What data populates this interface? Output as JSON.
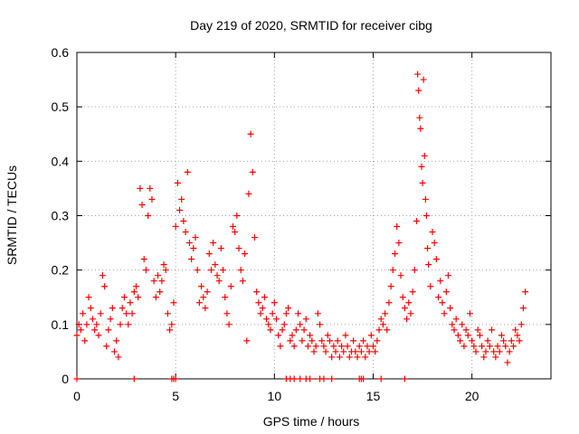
{
  "chart_data": {
    "type": "scatter",
    "title": "Day 219 of 2020, SRMTID for receiver cibg",
    "xlabel": "GPS time / hours",
    "ylabel": "SRMTID / TECUs",
    "xlim": [
      0,
      24
    ],
    "ylim": [
      0,
      0.6
    ],
    "xticks": [
      0,
      5,
      10,
      15,
      20
    ],
    "xtick_labels": [
      "0",
      "5",
      "10",
      "15",
      "20"
    ],
    "yticks": [
      0,
      0.1,
      0.2,
      0.3,
      0.4,
      0.5,
      0.6
    ],
    "ytick_labels": [
      "0",
      "0.1",
      "0.2",
      "0.3",
      "0.4",
      "0.5",
      "0.6"
    ],
    "grid": true,
    "marker": "+",
    "series": [
      {
        "name": "SRMTID",
        "color": "#ff0000",
        "points": [
          [
            0.0,
            0.08
          ],
          [
            0.1,
            0.1
          ],
          [
            0.2,
            0.09
          ],
          [
            0.3,
            0.12
          ],
          [
            0.4,
            0.07
          ],
          [
            0.5,
            0.1
          ],
          [
            0.6,
            0.15
          ],
          [
            0.7,
            0.13
          ],
          [
            0.8,
            0.11
          ],
          [
            0.9,
            0.09
          ],
          [
            1.0,
            0.1
          ],
          [
            1.1,
            0.08
          ],
          [
            1.2,
            0.12
          ],
          [
            1.3,
            0.19
          ],
          [
            1.4,
            0.17
          ],
          [
            1.5,
            0.06
          ],
          [
            1.6,
            0.09
          ],
          [
            1.7,
            0.11
          ],
          [
            1.8,
            0.13
          ],
          [
            1.9,
            0.05
          ],
          [
            2.0,
            0.07
          ],
          [
            2.1,
            0.04
          ],
          [
            2.2,
            0.1
          ],
          [
            2.3,
            0.13
          ],
          [
            2.4,
            0.15
          ],
          [
            2.5,
            0.12
          ],
          [
            2.6,
            0.1
          ],
          [
            2.7,
            0.14
          ],
          [
            2.8,
            0.12
          ],
          [
            2.9,
            0.16
          ],
          [
            3.0,
            0.17
          ],
          [
            3.1,
            0.15
          ],
          [
            3.2,
            0.35
          ],
          [
            3.3,
            0.32
          ],
          [
            3.4,
            0.22
          ],
          [
            3.5,
            0.2
          ],
          [
            3.6,
            0.3
          ],
          [
            3.7,
            0.35
          ],
          [
            3.8,
            0.33
          ],
          [
            3.9,
            0.18
          ],
          [
            4.0,
            0.15
          ],
          [
            4.1,
            0.19
          ],
          [
            4.2,
            0.16
          ],
          [
            4.3,
            0.18
          ],
          [
            4.4,
            0.21
          ],
          [
            4.5,
            0.2
          ],
          [
            4.6,
            0.12
          ],
          [
            4.7,
            0.09
          ],
          [
            4.8,
            0.1
          ],
          [
            4.9,
            0.14
          ],
          [
            5.0,
            0.28
          ],
          [
            5.1,
            0.36
          ],
          [
            5.2,
            0.31
          ],
          [
            5.3,
            0.33
          ],
          [
            5.4,
            0.29
          ],
          [
            5.5,
            0.27
          ],
          [
            5.6,
            0.38
          ],
          [
            5.7,
            0.25
          ],
          [
            5.8,
            0.22
          ],
          [
            5.9,
            0.24
          ],
          [
            6.0,
            0.26
          ],
          [
            6.1,
            0.2
          ],
          [
            6.2,
            0.14
          ],
          [
            6.3,
            0.17
          ],
          [
            6.4,
            0.15
          ],
          [
            6.5,
            0.13
          ],
          [
            6.6,
            0.16
          ],
          [
            6.7,
            0.23
          ],
          [
            6.8,
            0.2
          ],
          [
            6.9,
            0.25
          ],
          [
            7.0,
            0.21
          ],
          [
            7.1,
            0.19
          ],
          [
            7.2,
            0.18
          ],
          [
            7.3,
            0.24
          ],
          [
            7.4,
            0.2
          ],
          [
            7.5,
            0.15
          ],
          [
            7.6,
            0.12
          ],
          [
            7.7,
            0.1
          ],
          [
            7.8,
            0.17
          ],
          [
            7.9,
            0.28
          ],
          [
            8.0,
            0.27
          ],
          [
            8.1,
            0.3
          ],
          [
            8.2,
            0.24
          ],
          [
            8.3,
            0.2
          ],
          [
            8.4,
            0.18
          ],
          [
            8.5,
            0.23
          ],
          [
            8.6,
            0.07
          ],
          [
            8.7,
            0.34
          ],
          [
            8.8,
            0.45
          ],
          [
            8.9,
            0.38
          ],
          [
            9.0,
            0.26
          ],
          [
            9.1,
            0.16
          ],
          [
            9.2,
            0.14
          ],
          [
            9.3,
            0.12
          ],
          [
            9.4,
            0.13
          ],
          [
            9.5,
            0.15
          ],
          [
            9.6,
            0.11
          ],
          [
            9.7,
            0.1
          ],
          [
            9.8,
            0.09
          ],
          [
            9.9,
            0.12
          ],
          [
            10.0,
            0.14
          ],
          [
            10.1,
            0.11
          ],
          [
            10.2,
            0.08
          ],
          [
            10.3,
            0.06
          ],
          [
            10.4,
            0.09
          ],
          [
            10.5,
            0.1
          ],
          [
            10.6,
            0.12
          ],
          [
            10.7,
            0.13
          ],
          [
            10.8,
            0.07
          ],
          [
            10.9,
            0.08
          ],
          [
            11.0,
            0.06
          ],
          [
            11.1,
            0.09
          ],
          [
            11.2,
            0.12
          ],
          [
            11.3,
            0.1
          ],
          [
            11.4,
            0.07
          ],
          [
            11.5,
            0.09
          ],
          [
            11.6,
            0.11
          ],
          [
            11.7,
            0.06
          ],
          [
            11.8,
            0.08
          ],
          [
            11.9,
            0.07
          ],
          [
            12.0,
            0.05
          ],
          [
            12.1,
            0.06
          ],
          [
            12.2,
            0.12
          ],
          [
            12.3,
            0.1
          ],
          [
            12.4,
            0.07
          ],
          [
            12.5,
            0.06
          ],
          [
            12.6,
            0.05
          ],
          [
            12.7,
            0.08
          ],
          [
            12.8,
            0.07
          ],
          [
            12.9,
            0.04
          ],
          [
            13.0,
            0.06
          ],
          [
            13.1,
            0.05
          ],
          [
            13.2,
            0.07
          ],
          [
            13.3,
            0.04
          ],
          [
            13.4,
            0.06
          ],
          [
            13.5,
            0.05
          ],
          [
            13.6,
            0.08
          ],
          [
            13.7,
            0.06
          ],
          [
            13.8,
            0.04
          ],
          [
            13.9,
            0.05
          ],
          [
            14.0,
            0.07
          ],
          [
            14.1,
            0.05
          ],
          [
            14.2,
            0.04
          ],
          [
            14.3,
            0.06
          ],
          [
            14.4,
            0.05
          ],
          [
            14.5,
            0.07
          ],
          [
            14.6,
            0.04
          ],
          [
            14.7,
            0.06
          ],
          [
            14.8,
            0.05
          ],
          [
            14.9,
            0.08
          ],
          [
            15.0,
            0.06
          ],
          [
            15.1,
            0.05
          ],
          [
            15.2,
            0.07
          ],
          [
            15.3,
            0.09
          ],
          [
            15.4,
            0.11
          ],
          [
            15.5,
            0.1
          ],
          [
            15.6,
            0.12
          ],
          [
            15.7,
            0.09
          ],
          [
            15.8,
            0.14
          ],
          [
            15.9,
            0.17
          ],
          [
            16.0,
            0.2
          ],
          [
            16.1,
            0.23
          ],
          [
            16.2,
            0.28
          ],
          [
            16.3,
            0.25
          ],
          [
            16.4,
            0.19
          ],
          [
            16.5,
            0.15
          ],
          [
            16.6,
            0.13
          ],
          [
            16.7,
            0.11
          ],
          [
            16.8,
            0.14
          ],
          [
            16.9,
            0.12
          ],
          [
            17.0,
            0.16
          ],
          [
            17.1,
            0.2
          ],
          [
            17.2,
            0.29
          ],
          [
            17.25,
            0.56
          ],
          [
            17.3,
            0.53
          ],
          [
            17.35,
            0.48
          ],
          [
            17.4,
            0.46
          ],
          [
            17.45,
            0.39
          ],
          [
            17.5,
            0.36
          ],
          [
            17.55,
            0.55
          ],
          [
            17.6,
            0.41
          ],
          [
            17.65,
            0.33
          ],
          [
            17.7,
            0.3
          ],
          [
            17.75,
            0.24
          ],
          [
            17.8,
            0.21
          ],
          [
            17.9,
            0.17
          ],
          [
            18.0,
            0.27
          ],
          [
            18.1,
            0.25
          ],
          [
            18.2,
            0.22
          ],
          [
            18.3,
            0.15
          ],
          [
            18.4,
            0.18
          ],
          [
            18.5,
            0.14
          ],
          [
            18.6,
            0.12
          ],
          [
            18.7,
            0.16
          ],
          [
            18.8,
            0.19
          ],
          [
            18.9,
            0.13
          ],
          [
            19.0,
            0.1
          ],
          [
            19.1,
            0.09
          ],
          [
            19.2,
            0.11
          ],
          [
            19.3,
            0.08
          ],
          [
            19.4,
            0.07
          ],
          [
            19.5,
            0.1
          ],
          [
            19.6,
            0.06
          ],
          [
            19.7,
            0.09
          ],
          [
            19.8,
            0.08
          ],
          [
            19.9,
            0.12
          ],
          [
            20.0,
            0.07
          ],
          [
            20.1,
            0.06
          ],
          [
            20.2,
            0.05
          ],
          [
            20.3,
            0.09
          ],
          [
            20.4,
            0.08
          ],
          [
            20.5,
            0.06
          ],
          [
            20.6,
            0.04
          ],
          [
            20.7,
            0.05
          ],
          [
            20.8,
            0.07
          ],
          [
            20.9,
            0.06
          ],
          [
            21.0,
            0.09
          ],
          [
            21.1,
            0.05
          ],
          [
            21.2,
            0.04
          ],
          [
            21.3,
            0.06
          ],
          [
            21.4,
            0.05
          ],
          [
            21.5,
            0.08
          ],
          [
            21.6,
            0.07
          ],
          [
            21.7,
            0.06
          ],
          [
            21.8,
            0.03
          ],
          [
            21.9,
            0.05
          ],
          [
            22.0,
            0.07
          ],
          [
            22.1,
            0.06
          ],
          [
            22.2,
            0.09
          ],
          [
            22.3,
            0.08
          ],
          [
            22.4,
            0.07
          ],
          [
            22.5,
            0.1
          ],
          [
            22.6,
            0.13
          ],
          [
            22.7,
            0.16
          ],
          [
            0.0,
            0.0
          ],
          [
            2.9,
            0.0
          ],
          [
            4.8,
            0.0
          ],
          [
            4.9,
            0.0
          ],
          [
            5.0,
            0.0
          ],
          [
            10.6,
            0.0
          ],
          [
            10.8,
            0.0
          ],
          [
            11.0,
            0.0
          ],
          [
            11.3,
            0.0
          ],
          [
            11.6,
            0.0
          ],
          [
            11.8,
            0.0
          ],
          [
            12.3,
            0.0
          ],
          [
            12.5,
            0.0
          ],
          [
            12.9,
            0.0
          ],
          [
            14.3,
            0.0
          ],
          [
            14.4,
            0.0
          ],
          [
            14.5,
            0.0
          ],
          [
            15.4,
            0.0
          ],
          [
            16.6,
            0.0
          ]
        ]
      }
    ]
  }
}
